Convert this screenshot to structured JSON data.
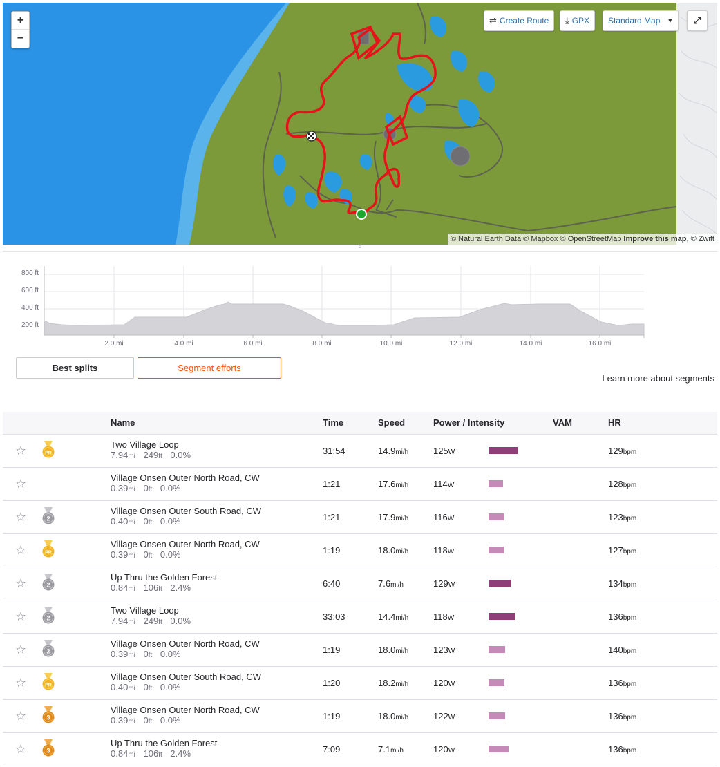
{
  "map": {
    "zoom_in": "+",
    "zoom_out": "−",
    "create_route_label": "Create Route",
    "gpx_label": "GPX",
    "map_style_label": "Standard Map",
    "attribution_parts": [
      "© Natural Earth Data",
      "© Mapbox",
      "© OpenStreetMap",
      "Improve this map",
      ", © Zwift"
    ],
    "colors": {
      "water": "#2a93e6",
      "land": "#7c9a3a",
      "route": "#e5141b",
      "path": "#5a5a5a"
    }
  },
  "elevation": {
    "y_ticks": [
      "800 ft",
      "600 ft",
      "400 ft",
      "200 ft"
    ],
    "x_ticks": [
      "2.0 mi",
      "4.0 mi",
      "6.0 mi",
      "8.0 mi",
      "10.0 mi",
      "12.0 mi",
      "14.0 mi",
      "16.0 mi"
    ],
    "fill_color": "#d4d4d8"
  },
  "tabs": {
    "best_splits": "Best splits",
    "segment_efforts": "Segment efforts"
  },
  "learn_more": "Learn more about segments",
  "table": {
    "headers": {
      "name": "Name",
      "time": "Time",
      "speed": "Speed",
      "power": "Power / Intensity",
      "vam": "VAM",
      "hr": "HR"
    },
    "units": {
      "dist": "mi",
      "elev": "ft",
      "speed": "mi/h",
      "power": "W",
      "hr": "bpm"
    },
    "rows": [
      {
        "name": "Two Village Loop",
        "dist": "7.94",
        "elev": "249",
        "grade": "0.0%",
        "time": "31:54",
        "speed": "14.9",
        "power": "125",
        "intensity": 0.72,
        "hr": "129",
        "medal": "pr",
        "medal_text": "PR"
      },
      {
        "name": "Village Onsen Outer North Road, CW",
        "dist": "0.39",
        "elev": "0",
        "grade": "0.0%",
        "time": "1:21",
        "speed": "17.6",
        "power": "114",
        "intensity": 0.36,
        "hr": "128",
        "medal": "",
        "medal_text": ""
      },
      {
        "name": "Village Onsen Outer South Road, CW",
        "dist": "0.40",
        "elev": "0",
        "grade": "0.0%",
        "time": "1:21",
        "speed": "17.9",
        "power": "116",
        "intensity": 0.38,
        "hr": "123",
        "medal": "silver",
        "medal_text": "2"
      },
      {
        "name": "Village Onsen Outer North Road, CW",
        "dist": "0.39",
        "elev": "0",
        "grade": "0.0%",
        "time": "1:19",
        "speed": "18.0",
        "power": "118",
        "intensity": 0.38,
        "hr": "127",
        "medal": "pr",
        "medal_text": "PR"
      },
      {
        "name": "Up Thru the Golden Forest",
        "dist": "0.84",
        "elev": "106",
        "grade": "2.4%",
        "time": "6:40",
        "speed": "7.6",
        "power": "129",
        "intensity": 0.56,
        "hr": "134",
        "medal": "silver",
        "medal_text": "2"
      },
      {
        "name": "Two Village Loop",
        "dist": "7.94",
        "elev": "249",
        "grade": "0.0%",
        "time": "33:03",
        "speed": "14.4",
        "power": "118",
        "intensity": 0.65,
        "hr": "136",
        "medal": "silver",
        "medal_text": "2"
      },
      {
        "name": "Village Onsen Outer North Road, CW",
        "dist": "0.39",
        "elev": "0",
        "grade": "0.0%",
        "time": "1:19",
        "speed": "18.0",
        "power": "123",
        "intensity": 0.42,
        "hr": "140",
        "medal": "silver",
        "medal_text": "2"
      },
      {
        "name": "Village Onsen Outer South Road, CW",
        "dist": "0.40",
        "elev": "0",
        "grade": "0.0%",
        "time": "1:20",
        "speed": "18.2",
        "power": "120",
        "intensity": 0.4,
        "hr": "136",
        "medal": "pr",
        "medal_text": "PR"
      },
      {
        "name": "Village Onsen Outer North Road, CW",
        "dist": "0.39",
        "elev": "0",
        "grade": "0.0%",
        "time": "1:19",
        "speed": "18.0",
        "power": "122",
        "intensity": 0.42,
        "hr": "136",
        "medal": "bronze",
        "medal_text": "3"
      },
      {
        "name": "Up Thru the Golden Forest",
        "dist": "0.84",
        "elev": "106",
        "grade": "2.4%",
        "time": "7:09",
        "speed": "7.1",
        "power": "120",
        "intensity": 0.5,
        "hr": "136",
        "medal": "bronze",
        "medal_text": "3"
      }
    ]
  }
}
